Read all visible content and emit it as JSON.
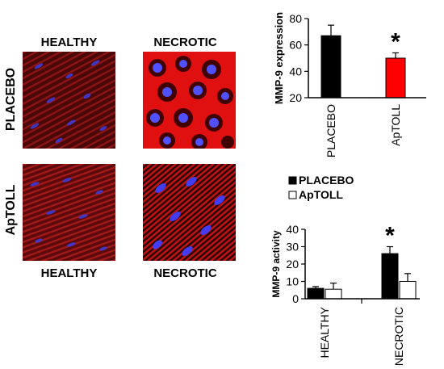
{
  "figure": {
    "col_labels_top": [
      "HEALTHY",
      "NECROTIC"
    ],
    "col_labels_bottom": [
      "HEALTHY",
      "NECROTIC"
    ],
    "row_labels": [
      "PLACEBO",
      "ApTOLL"
    ],
    "significance_mark": "*",
    "colors": {
      "placebo": "#000000",
      "aptoll_expression": "#ff0000",
      "aptoll_activity": "#ffffff",
      "tissue": "#cc1010",
      "nuclei": "#3a3aff"
    }
  },
  "chart_data": [
    {
      "type": "bar",
      "ylabel": "MMP-9 expression",
      "categories": [
        "PLACEBO",
        "ApTOLL"
      ],
      "values": [
        67,
        50
      ],
      "errors": [
        8,
        4
      ],
      "colors": [
        "#000000",
        "#ff0000"
      ],
      "ylim": [
        20,
        80
      ],
      "yticks": [
        20,
        40,
        60,
        80
      ],
      "annotations": [
        {
          "category": "ApTOLL",
          "text": "*"
        }
      ]
    },
    {
      "type": "bar",
      "ylabel": "MMP-9 activity",
      "categories": [
        "HEALTHY",
        "NECROTIC"
      ],
      "series": [
        {
          "name": "PLACEBO",
          "values": [
            6,
            26
          ],
          "errors": [
            1,
            4
          ],
          "color": "#000000"
        },
        {
          "name": "ApTOLL",
          "values": [
            5.5,
            10
          ],
          "errors": [
            3.5,
            4.5
          ],
          "color": "#ffffff"
        }
      ],
      "ylim": [
        0,
        40
      ],
      "yticks": [
        0,
        10,
        20,
        30,
        40
      ],
      "legend": "top",
      "annotations": [
        {
          "category": "NECROTIC",
          "text": "*"
        }
      ]
    }
  ]
}
